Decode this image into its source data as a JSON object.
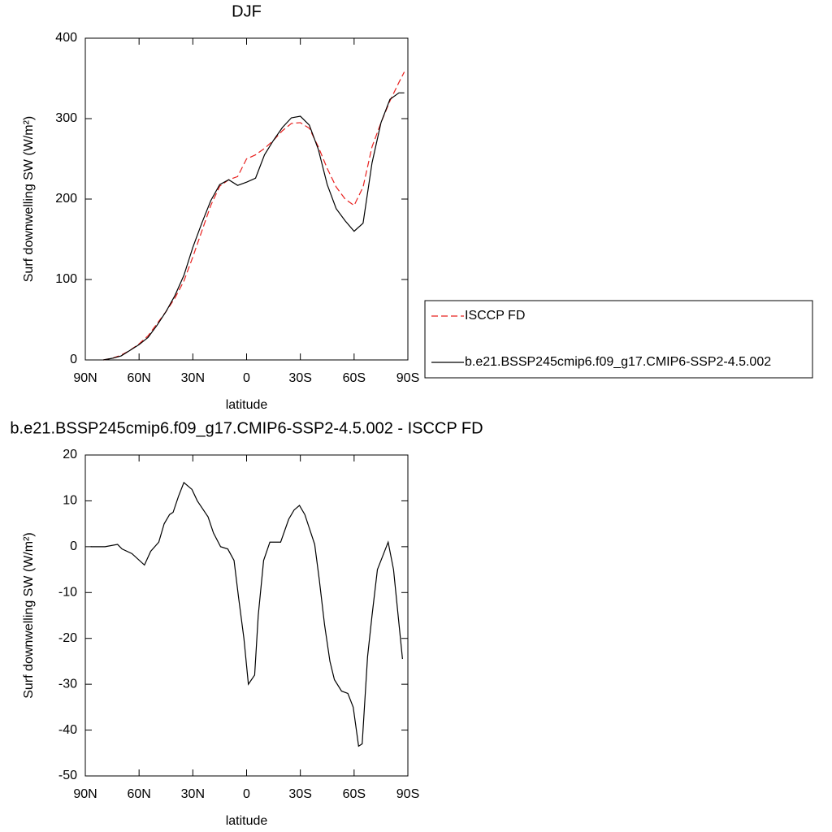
{
  "chart_data": [
    {
      "type": "line",
      "title": "DJF",
      "x_label": "latitude",
      "y_label": "Surf downwelling SW (W/m²)",
      "xlim": [
        90,
        -90
      ],
      "ylim": [
        0,
        400
      ],
      "xticks": [
        {
          "value": 90,
          "label": "90N"
        },
        {
          "value": 60,
          "label": "60N"
        },
        {
          "value": 30,
          "label": "30N"
        },
        0,
        {
          "value": -30,
          "label": "30S"
        },
        {
          "value": -60,
          "label": "60S"
        },
        {
          "value": -90,
          "label": "90S"
        }
      ],
      "yticks": [
        0,
        100,
        200,
        300,
        400
      ],
      "legend": "right",
      "x": [
        80,
        75,
        70,
        65,
        60,
        55,
        50,
        45,
        40,
        35,
        30,
        25,
        20,
        15,
        10,
        5,
        0,
        -5,
        -10,
        -15,
        -20,
        -25,
        -30,
        -35,
        -40,
        -45,
        -50,
        -55,
        -60,
        -65,
        -70,
        -75,
        -80,
        -85,
        -88
      ],
      "series": [
        {
          "name": "ISCCP FD",
          "color": "#e8201e",
          "line_style": "dashed",
          "values": [
            0,
            2,
            6,
            12,
            20,
            30,
            45,
            60,
            77,
            98,
            128,
            160,
            192,
            216,
            224,
            228,
            250,
            255,
            263,
            273,
            285,
            294,
            295,
            288,
            265,
            238,
            215,
            200,
            192,
            215,
            265,
            295,
            322,
            345,
            358
          ]
        },
        {
          "name": "b.e21.BSSP245cmip6.f09_g17.CMIP6-SSP2-4.5.002",
          "color": "#000000",
          "line_style": "solid",
          "values": [
            0,
            2,
            5,
            12,
            19,
            28,
            43,
            60,
            80,
            105,
            140,
            170,
            198,
            218,
            224,
            217,
            221,
            226,
            255,
            273,
            289,
            301,
            303,
            292,
            262,
            218,
            188,
            173,
            160,
            170,
            245,
            295,
            324,
            332,
            332
          ]
        }
      ]
    },
    {
      "type": "line",
      "title": "b.e21.BSSP245cmip6.f09_g17.CMIP6-SSP2-4.5.002 - ISCCP FD",
      "x_label": "latitude",
      "y_label": "Surf downwelling SW (W/m²)",
      "xlim": [
        90,
        -90
      ],
      "ylim": [
        -50,
        20
      ],
      "xticks": [
        {
          "value": 90,
          "label": "90N"
        },
        {
          "value": 60,
          "label": "60N"
        },
        {
          "value": 30,
          "label": "30N"
        },
        0,
        {
          "value": -30,
          "label": "30S"
        },
        {
          "value": -60,
          "label": "60S"
        },
        {
          "value": -90,
          "label": "90S"
        }
      ],
      "yticks": [
        -50,
        -40,
        -30,
        -20,
        -10,
        0,
        10,
        20
      ],
      "x": [
        87,
        79,
        72,
        69.5,
        64,
        57,
        53.5,
        49,
        46,
        43,
        41,
        38,
        35,
        30.5,
        27.5,
        21.5,
        18.5,
        14.5,
        10.5,
        7,
        4.5,
        1.5,
        -1,
        -4.5,
        -6.5,
        -9.5,
        -13,
        -19,
        -23.5,
        -26.5,
        -29.5,
        -32.5,
        -38,
        -40.5,
        -43.5,
        -46.5,
        -49,
        -53,
        -56.5,
        -59.5,
        -62.5,
        -64.5,
        -67.5,
        -70,
        -73,
        -79,
        -82,
        -87
      ],
      "series": [
        {
          "color": "#000000",
          "line_style": "solid",
          "values": [
            0,
            0,
            0.5,
            -0.5,
            -1.5,
            -4,
            -1,
            1,
            5,
            7,
            7.5,
            11,
            14,
            12.5,
            10,
            6.5,
            3,
            0,
            -0.5,
            -3,
            -11,
            -20,
            -30,
            -28,
            -15,
            -3,
            1,
            1,
            6,
            8,
            9,
            7,
            0.5,
            -7,
            -17,
            -25,
            -29,
            -31.5,
            -32,
            -35,
            -43.5,
            -43,
            -24,
            -15,
            -5,
            1,
            -5,
            -24.5
          ]
        }
      ]
    }
  ]
}
